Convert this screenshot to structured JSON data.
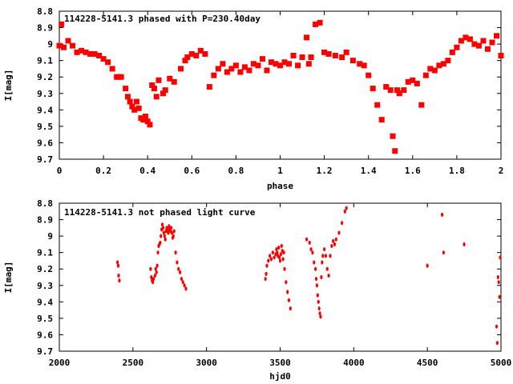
{
  "chart_data": [
    {
      "type": "scatter",
      "title": "114228-5141.3 phased with P=230.40day",
      "xlabel": "phase",
      "ylabel": "I[mag]",
      "xlim": [
        0,
        2
      ],
      "ylim": [
        9.7,
        8.8
      ],
      "y_inverted": true,
      "x_ticks": [
        "0",
        "0.2",
        "0.4",
        "0.6",
        "0.8",
        "1",
        "1.2",
        "1.4",
        "1.6",
        "1.8",
        "2"
      ],
      "x_tick_values": [
        0,
        0.2,
        0.4,
        0.6,
        0.8,
        1.0,
        1.2,
        1.4,
        1.6,
        1.8,
        2.0
      ],
      "y_ticks": [
        "8.8",
        "8.9",
        "9",
        "9.1",
        "9.2",
        "9.3",
        "9.4",
        "9.5",
        "9.6",
        "9.7"
      ],
      "y_tick_values": [
        8.8,
        8.9,
        9.0,
        9.1,
        9.2,
        9.3,
        9.4,
        9.5,
        9.6,
        9.7
      ],
      "grid": false,
      "color": "#ff0000",
      "marker": "filled-square",
      "x": [
        0.0,
        0.01,
        0.02,
        0.04,
        0.06,
        0.08,
        0.1,
        0.12,
        0.14,
        0.16,
        0.18,
        0.2,
        0.22,
        0.24,
        0.26,
        0.27,
        0.28,
        0.3,
        0.31,
        0.32,
        0.33,
        0.34,
        0.35,
        0.36,
        0.37,
        0.38,
        0.39,
        0.4,
        0.41,
        0.42,
        0.43,
        0.44,
        0.45,
        0.47,
        0.48,
        0.5,
        0.52,
        0.55,
        0.57,
        0.58,
        0.6,
        0.62,
        0.64,
        0.66,
        0.68,
        0.7,
        0.72,
        0.74,
        0.76,
        0.78,
        0.8,
        0.82,
        0.84,
        0.86,
        0.88,
        0.9,
        0.92,
        0.94,
        0.96,
        0.98,
        1.0,
        1.02,
        1.04,
        1.06,
        1.08,
        1.1,
        1.12,
        1.13,
        1.14,
        1.16,
        1.18,
        1.2,
        1.22,
        1.25,
        1.28,
        1.3,
        1.33,
        1.36,
        1.38,
        1.4,
        1.42,
        1.44,
        1.46,
        1.48,
        1.5,
        1.51,
        1.52,
        1.53,
        1.54,
        1.56,
        1.58,
        1.6,
        1.62,
        1.64,
        1.66,
        1.68,
        1.7,
        1.72,
        1.74,
        1.76,
        1.78,
        1.8,
        1.82,
        1.84,
        1.86,
        1.88,
        1.9,
        1.92,
        1.94,
        1.96,
        1.98,
        2.0
      ],
      "y": [
        9.01,
        8.88,
        9.02,
        8.98,
        9.01,
        9.05,
        9.04,
        9.05,
        9.06,
        9.06,
        9.07,
        9.09,
        9.11,
        9.15,
        9.2,
        9.2,
        9.2,
        9.27,
        9.32,
        9.35,
        9.38,
        9.4,
        9.35,
        9.39,
        9.45,
        9.46,
        9.44,
        9.47,
        9.49,
        9.25,
        9.27,
        9.32,
        9.22,
        9.3,
        9.28,
        9.21,
        9.23,
        9.15,
        9.1,
        9.08,
        9.06,
        9.07,
        9.04,
        9.06,
        9.26,
        9.19,
        9.15,
        9.12,
        9.17,
        9.15,
        9.13,
        9.17,
        9.14,
        9.16,
        9.12,
        9.13,
        9.09,
        9.16,
        9.11,
        9.12,
        9.13,
        9.11,
        9.12,
        9.07,
        9.13,
        9.08,
        8.96,
        9.12,
        9.08,
        8.88,
        8.87,
        9.05,
        9.06,
        9.07,
        9.08,
        9.05,
        9.1,
        9.12,
        9.13,
        9.19,
        9.27,
        9.37,
        9.46,
        9.26,
        9.28,
        9.56,
        9.65,
        9.28,
        9.3,
        9.28,
        9.23,
        9.22,
        9.24,
        9.37,
        9.19,
        9.15,
        9.16,
        9.13,
        9.12,
        9.1,
        9.05,
        9.02,
        8.98,
        8.96,
        8.97,
        9.0,
        9.01,
        8.98,
        9.03,
        8.99,
        8.95,
        9.07
      ]
    },
    {
      "type": "scatter",
      "title": "114228-5141.3 not phased light curve",
      "xlabel": "hjd0",
      "ylabel": "I[mag]",
      "xlim": [
        2000,
        5000
      ],
      "ylim": [
        9.7,
        8.8
      ],
      "y_inverted": true,
      "x_ticks": [
        "2000",
        "2500",
        "3000",
        "3500",
        "4000",
        "4500",
        "5000"
      ],
      "x_tick_values": [
        2000,
        2500,
        3000,
        3500,
        4000,
        4500,
        5000
      ],
      "y_ticks": [
        "8.8",
        "8.9",
        "9",
        "9.1",
        "9.2",
        "9.3",
        "9.4",
        "9.5",
        "9.6",
        "9.7"
      ],
      "y_tick_values": [
        8.8,
        8.9,
        9.0,
        9.1,
        9.2,
        9.3,
        9.4,
        9.5,
        9.6,
        9.7
      ],
      "grid": false,
      "color": "#ff0000",
      "marker": "small-dot",
      "x": [
        2395,
        2400,
        2403,
        2408,
        2620,
        2625,
        2630,
        2635,
        2640,
        2650,
        2655,
        2660,
        2665,
        2670,
        2675,
        2680,
        2685,
        2690,
        2695,
        2700,
        2705,
        2710,
        2715,
        2720,
        2725,
        2730,
        2735,
        2740,
        2745,
        2750,
        2755,
        2760,
        2765,
        2770,
        2775,
        2780,
        2790,
        2800,
        2810,
        2820,
        2830,
        2840,
        2850,
        2860,
        3400,
        3405,
        3410,
        3420,
        3430,
        3440,
        3450,
        3460,
        3470,
        3475,
        3480,
        3485,
        3490,
        3495,
        3500,
        3505,
        3510,
        3515,
        3520,
        3525,
        3530,
        3540,
        3550,
        3560,
        3570,
        3680,
        3700,
        3710,
        3720,
        3730,
        3740,
        3745,
        3750,
        3755,
        3760,
        3765,
        3770,
        3775,
        3780,
        3785,
        3790,
        3800,
        3810,
        3820,
        3830,
        3840,
        3850,
        3860,
        3870,
        3880,
        3900,
        3920,
        3940,
        3950,
        4500,
        4600,
        4610,
        4750,
        4970,
        4975,
        4980,
        4985,
        4990,
        4995
      ],
      "y": [
        9.16,
        9.18,
        9.24,
        9.27,
        9.2,
        9.25,
        9.27,
        9.28,
        9.26,
        9.24,
        9.2,
        9.22,
        9.18,
        9.1,
        9.06,
        9.05,
        9.04,
        9.0,
        8.96,
        8.93,
        8.95,
        8.98,
        9.0,
        9.02,
        8.97,
        8.95,
        8.96,
        8.98,
        8.94,
        8.96,
        8.97,
        8.95,
        8.98,
        9.01,
        9.0,
        8.97,
        9.1,
        9.16,
        9.2,
        9.22,
        9.26,
        9.28,
        9.3,
        9.32,
        9.26,
        9.23,
        9.18,
        9.15,
        9.12,
        9.14,
        9.1,
        9.13,
        9.11,
        9.08,
        9.1,
        9.12,
        9.07,
        9.13,
        9.15,
        9.11,
        9.06,
        9.09,
        9.14,
        9.1,
        9.2,
        9.28,
        9.34,
        9.39,
        9.44,
        9.02,
        9.04,
        9.08,
        9.1,
        9.16,
        9.2,
        9.26,
        9.3,
        9.36,
        9.4,
        9.44,
        9.47,
        9.49,
        9.25,
        9.16,
        9.12,
        9.08,
        9.12,
        9.2,
        9.24,
        9.12,
        9.06,
        9.03,
        9.05,
        9.02,
        8.98,
        8.92,
        8.85,
        8.83,
        9.18,
        8.87,
        9.1,
        9.05,
        9.55,
        9.65,
        9.25,
        9.28,
        9.37,
        9.13
      ]
    }
  ]
}
